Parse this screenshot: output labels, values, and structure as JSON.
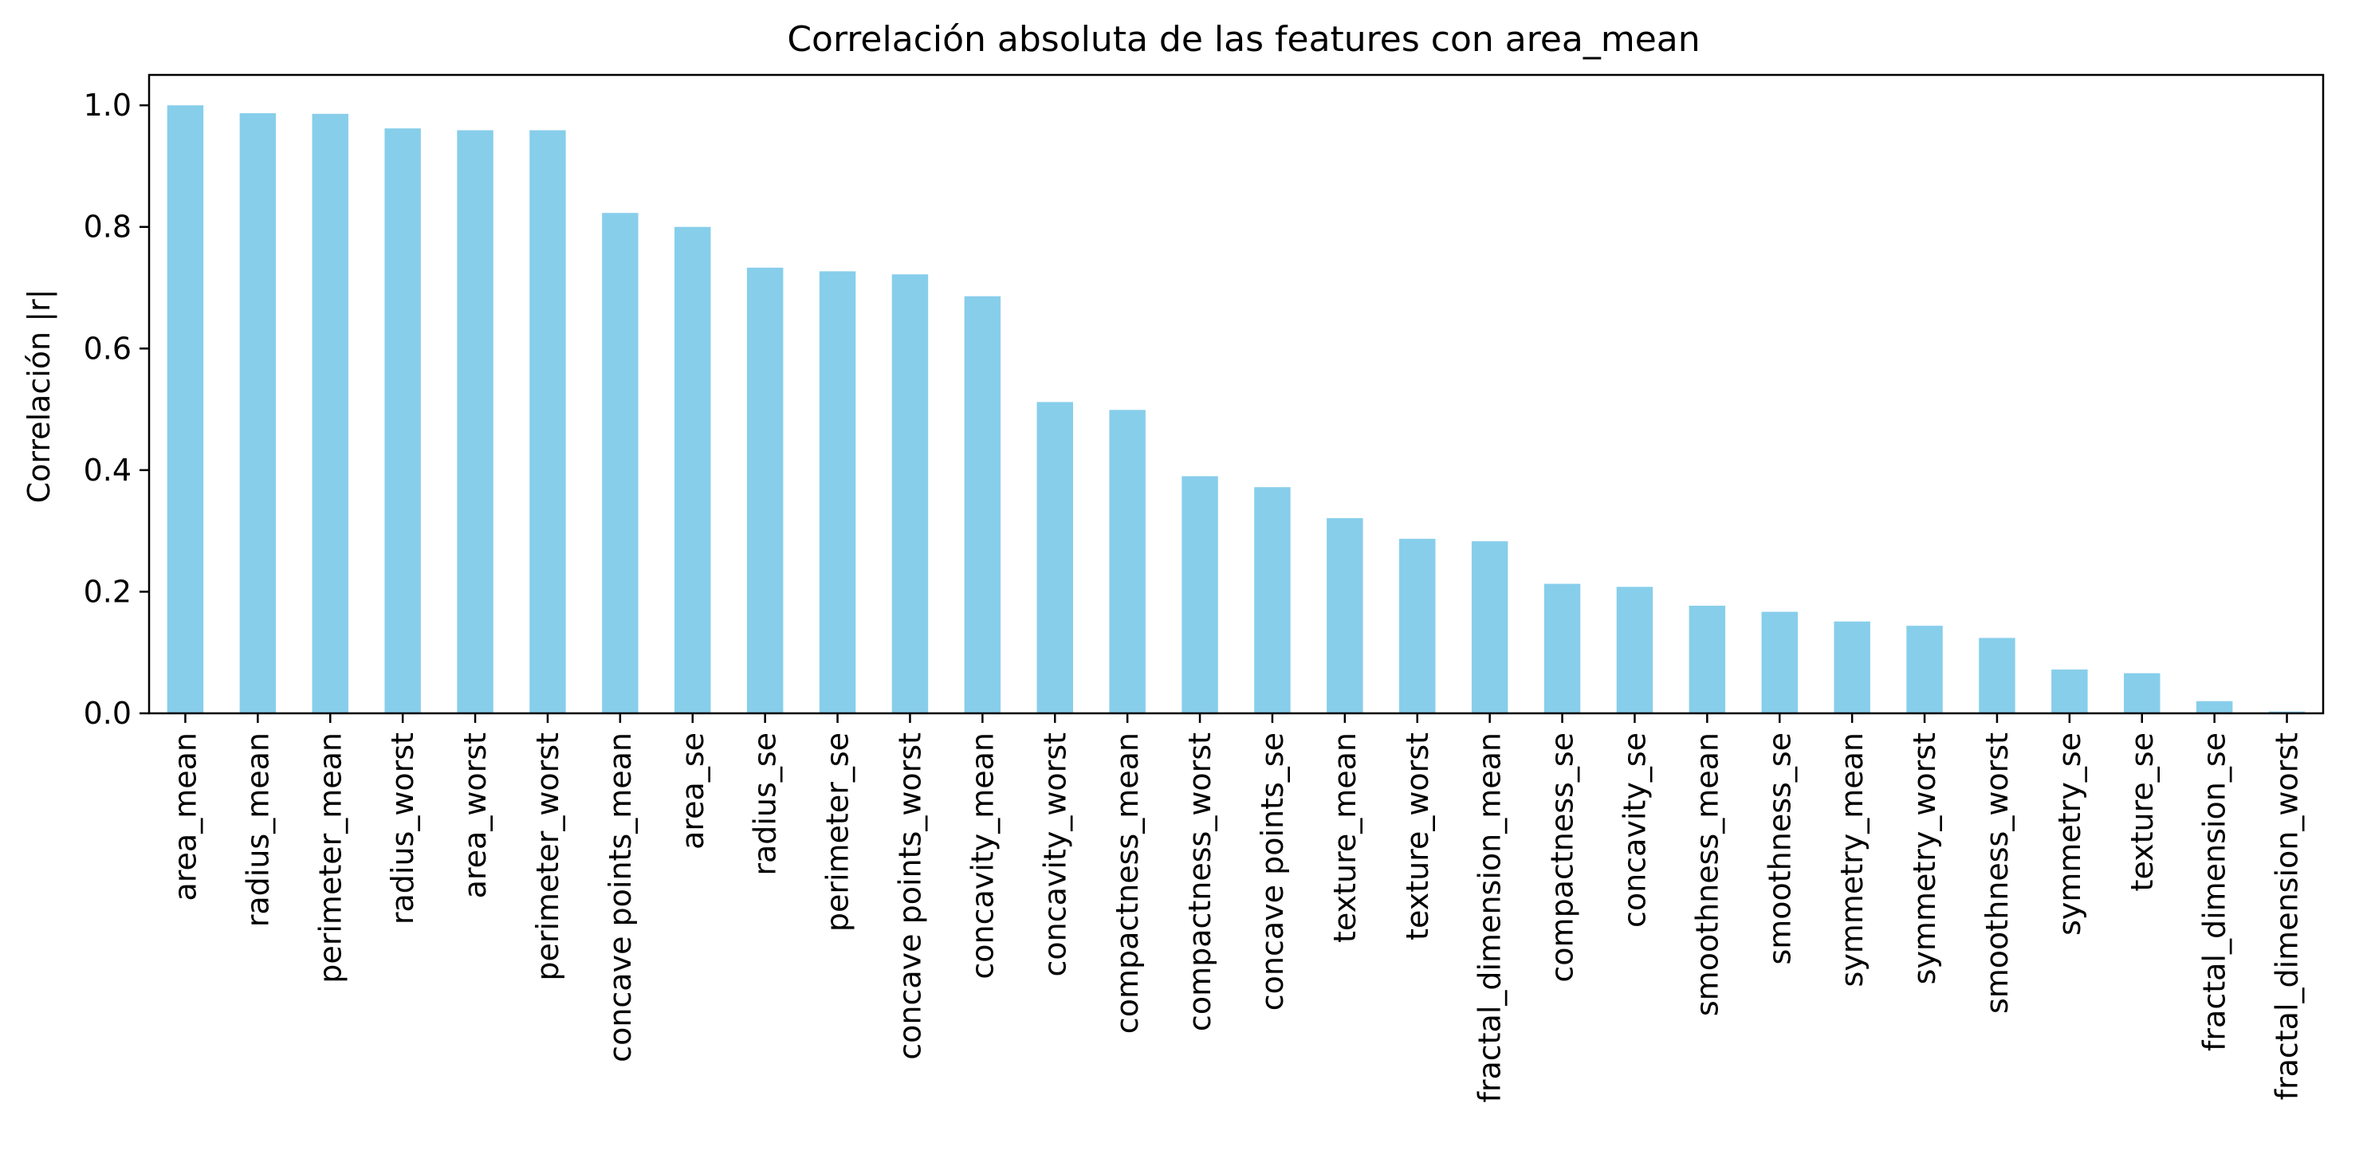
{
  "chart_data": {
    "type": "bar",
    "title": "Correlación absoluta de las features con area_mean",
    "xlabel": "",
    "ylabel": "Correlación |r|",
    "ylim": [
      0,
      1.05
    ],
    "yticks": [
      "0.0",
      "0.2",
      "0.4",
      "0.6",
      "0.8",
      "1.0"
    ],
    "grid": false,
    "legend": "none",
    "bar_color": "#87ceeb",
    "categories": [
      "area_mean",
      "radius_mean",
      "perimeter_mean",
      "radius_worst",
      "area_worst",
      "perimeter_worst",
      "concave points_mean",
      "area_se",
      "radius_se",
      "perimeter_se",
      "concave points_worst",
      "concavity_mean",
      "concavity_worst",
      "compactness_mean",
      "compactness_worst",
      "concave points_se",
      "texture_mean",
      "texture_worst",
      "fractal_dimension_mean",
      "compactness_se",
      "concavity_se",
      "smoothness_mean",
      "smoothness_se",
      "symmetry_mean",
      "symmetry_worst",
      "smoothness_worst",
      "symmetry_se",
      "texture_se",
      "fractal_dimension_se",
      "fractal_dimension_worst"
    ],
    "values": [
      1.0,
      0.987,
      0.986,
      0.962,
      0.959,
      0.959,
      0.823,
      0.8,
      0.733,
      0.727,
      0.722,
      0.686,
      0.512,
      0.499,
      0.39,
      0.372,
      0.321,
      0.287,
      0.283,
      0.213,
      0.208,
      0.177,
      0.167,
      0.151,
      0.144,
      0.124,
      0.072,
      0.066,
      0.02,
      0.003
    ]
  }
}
